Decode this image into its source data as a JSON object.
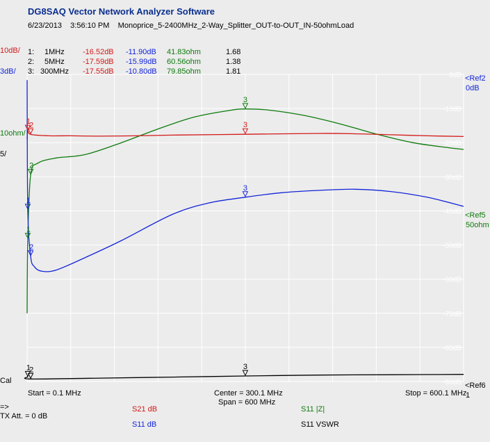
{
  "header": {
    "title": "DG8SAQ Vector Network Analyzer Software",
    "date": "6/23/2013",
    "time": "3:56:10 PM",
    "measurement_name": "Monoprice_5-2400MHz_2-Way_Splitter_OUT-to-OUT_IN-50ohmLoad"
  },
  "left_scale": {
    "s21_div": "10dB/",
    "s11_div": "3dB/",
    "z_div": "10ohm/",
    "vswr_div": "5/",
    "cal": "Cal"
  },
  "markers": [
    {
      "index": "1:",
      "freq": "1MHz",
      "s21": "-16.52dB",
      "s11": "-11.90dB",
      "z": "41.83ohm",
      "vswr": "1.68"
    },
    {
      "index": "2:",
      "freq": "5MHz",
      "s21": "-17.59dB",
      "s11": "-15.99dB",
      "z": "60.56ohm",
      "vswr": "1.38"
    },
    {
      "index": "3:",
      "freq": "300MHz",
      "s21": "-17.55dB",
      "s11": "-10.80dB",
      "z": "79.85ohm",
      "vswr": "1.81"
    }
  ],
  "right_scale": {
    "ref2_label": "<Ref2",
    "ref2_value": "0dB",
    "ref5_label": "<Ref5",
    "ref5_value": "50ohm",
    "ref6_label": "<Ref6",
    "ref6_value": "1"
  },
  "footer": {
    "start": "Start = 0.1 MHz",
    "center": "Center = 300.1 MHz",
    "span": "Span = 600 MHz",
    "stop": "Stop = 600.1 MHz",
    "arrow": "=>",
    "tx_att": "TX Att.  = 0 dB",
    "legend_s21": "S21  dB",
    "legend_s11_db": "S11  dB",
    "legend_s11_z": "S11  |Z|",
    "legend_s11_vswr": "S11  VSWR"
  },
  "colors": {
    "s21": "#d41818",
    "s11_db": "#1224d8",
    "s11_z": "#0d7a0d",
    "s11_vswr": "#000000",
    "grid": "#ffffff"
  },
  "chart_data": {
    "type": "line",
    "x_unit": "MHz",
    "xlim": [
      0.1,
      600.1
    ],
    "ylim": [
      -90,
      0
    ],
    "grid": true,
    "yticks": [
      "0dB",
      "-10dB",
      "-20dB",
      "-30dB",
      "-40dB",
      "-50dB",
      "-60dB",
      "-70dB",
      "-80dB",
      "-90dB"
    ],
    "marker_freqs": [
      1,
      5,
      300
    ],
    "series": [
      {
        "name": "S21  dB",
        "x": [
          0.1,
          1,
          5,
          30,
          60,
          100,
          150,
          200,
          300,
          400,
          450,
          500,
          550,
          600.1
        ],
        "y": [
          -19.0,
          -16.52,
          -17.59,
          -18.0,
          -18.0,
          -18.1,
          -18.0,
          -17.8,
          -17.55,
          -17.3,
          -17.4,
          -17.7,
          -18.0,
          -18.2
        ]
      },
      {
        "name": "S11  dB",
        "x": [
          0.1,
          1,
          5,
          10,
          20,
          40,
          80,
          130,
          200,
          250,
          300,
          350,
          400,
          450,
          500,
          550,
          600.1
        ],
        "y": [
          -0.5,
          -11.9,
          -15.99,
          -16.9,
          -17.3,
          -17.2,
          -16.1,
          -14.6,
          -12.3,
          -11.3,
          -10.8,
          -10.4,
          -10.2,
          -10.1,
          -10.3,
          -10.8,
          -11.6
        ]
      },
      {
        "name": "S11  |Z|",
        "x": [
          0.1,
          1,
          5,
          15,
          40,
          80,
          130,
          180,
          230,
          280,
          300,
          330,
          380,
          430,
          480,
          530,
          580,
          600.1
        ],
        "y": [
          20,
          41.83,
          60.56,
          64.0,
          65.5,
          66.5,
          70.0,
          74.0,
          77.5,
          79.5,
          79.85,
          79.6,
          78.0,
          75.5,
          72.5,
          70.0,
          68.5,
          68.0
        ]
      },
      {
        "name": "S11  VSWR",
        "x": [
          0.1,
          1,
          5,
          100,
          200,
          300,
          400,
          500,
          600.1
        ],
        "y": [
          1.68,
          1.68,
          1.38,
          1.5,
          1.65,
          1.81,
          1.95,
          2.0,
          2.05
        ]
      }
    ]
  }
}
